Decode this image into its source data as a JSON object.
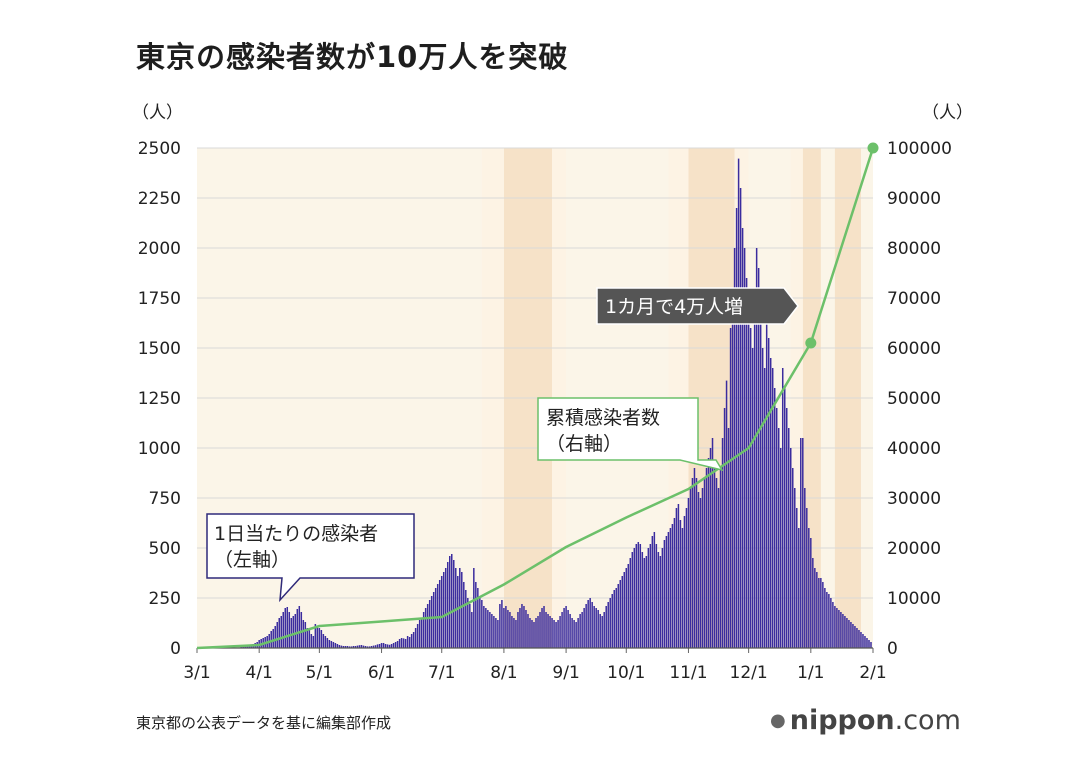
{
  "title": "東京の感染者数が10万人を突破",
  "source_note": "東京都の公表データを基に編集部作成",
  "brand": {
    "dot_icon": "circle-dot-icon",
    "name_bold": "nippon",
    "name_rest": ".com"
  },
  "colors": {
    "bars": "#3b2c9e",
    "cumulative_line": "#6cc06a",
    "shade_light": "#fbf5e8",
    "shade_dark": "#f6e2c8",
    "grid": "#d9d9d9"
  },
  "callouts": {
    "daily": [
      "1日当たりの感染者",
      "（左軸）"
    ],
    "cumulative": [
      "累積感染者数",
      "（右軸）"
    ],
    "month": "1カ月で4万人増"
  },
  "chart_data": {
    "type": "bar",
    "title": "東京の感染者数が10万人を突破",
    "left_axis": {
      "unit": "（人）",
      "range": [
        0,
        2500
      ],
      "ticks": [
        "0",
        "250",
        "500",
        "750",
        "1000",
        "1250",
        "1500",
        "1750",
        "2000",
        "2250",
        "2500"
      ]
    },
    "right_axis": {
      "unit": "（人）",
      "range": [
        0,
        100000
      ],
      "ticks": [
        "0",
        "10000",
        "20000",
        "30000",
        "40000",
        "50000",
        "60000",
        "70000",
        "80000",
        "90000",
        "100000"
      ]
    },
    "x_ticks": [
      "3/1",
      "4/1",
      "5/1",
      "6/1",
      "7/1",
      "8/1",
      "9/1",
      "10/1",
      "11/1",
      "12/1",
      "1/1",
      "2/1"
    ],
    "grid": true,
    "series": [
      {
        "name": "1日当たりの感染者",
        "type": "bar",
        "axis": "left",
        "x": "day index from 3/1 (0 = 3/1, 337 = 2/1)",
        "values": [
          0,
          0,
          0,
          0,
          0,
          0,
          0,
          0,
          0,
          0,
          0,
          0,
          0,
          0,
          0,
          0,
          0,
          0,
          0,
          0,
          2,
          3,
          5,
          5,
          8,
          10,
          15,
          18,
          20,
          25,
          30,
          40,
          45,
          50,
          55,
          60,
          70,
          85,
          95,
          110,
          130,
          150,
          160,
          180,
          200,
          205,
          180,
          150,
          160,
          170,
          195,
          210,
          180,
          140,
          130,
          100,
          90,
          70,
          60,
          120,
          110,
          100,
          90,
          70,
          60,
          50,
          40,
          35,
          30,
          25,
          20,
          15,
          12,
          10,
          10,
          10,
          8,
          8,
          10,
          10,
          12,
          14,
          15,
          12,
          10,
          8,
          8,
          10,
          12,
          14,
          18,
          20,
          25,
          25,
          20,
          18,
          16,
          20,
          25,
          30,
          35,
          45,
          50,
          48,
          45,
          60,
          55,
          70,
          80,
          100,
          120,
          140,
          150,
          180,
          200,
          220,
          240,
          260,
          280,
          300,
          320,
          340,
          360,
          380,
          400,
          430,
          460,
          470,
          440,
          400,
          360,
          400,
          380,
          330,
          290,
          250,
          220,
          180,
          400,
          330,
          300,
          260,
          240,
          210,
          200,
          190,
          180,
          170,
          160,
          150,
          140,
          220,
          240,
          200,
          210,
          190,
          180,
          160,
          150,
          140,
          180,
          200,
          220,
          210,
          190,
          170,
          150,
          140,
          130,
          150,
          160,
          180,
          200,
          210,
          180,
          170,
          160,
          150,
          140,
          130,
          140,
          160,
          180,
          200,
          210,
          190,
          170,
          150,
          140,
          130,
          150,
          170,
          180,
          200,
          220,
          240,
          250,
          230,
          210,
          200,
          190,
          170,
          160,
          180,
          210,
          230,
          250,
          270,
          290,
          300,
          320,
          340,
          360,
          380,
          400,
          420,
          450,
          480,
          500,
          520,
          530,
          520,
          480,
          450,
          460,
          500,
          520,
          560,
          580,
          520,
          480,
          460,
          500,
          540,
          560,
          580,
          600,
          620,
          650,
          700,
          720,
          640,
          600,
          660,
          700,
          750,
          800,
          850,
          900,
          850,
          780,
          750,
          800,
          850,
          900,
          950,
          1000,
          1050,
          900,
          850,
          800,
          900,
          1050,
          1200,
          1337,
          1100,
          1600,
          1800,
          2000,
          2200,
          2447,
          2300,
          2100,
          2000,
          1850,
          1700,
          1600,
          1500,
          1800,
          2000,
          1900,
          1700,
          1500,
          1400,
          1650,
          1550,
          1450,
          1400,
          1300,
          1200,
          1100,
          1000,
          1400,
          1300,
          1200,
          1100,
          1000,
          900,
          800,
          700,
          600,
          1050,
          1050,
          800,
          700,
          600,
          550,
          450,
          400,
          380,
          350,
          350,
          330,
          300,
          280,
          270,
          250,
          230,
          210,
          200,
          190,
          180,
          170,
          160,
          150,
          140,
          130,
          120,
          110,
          100,
          90,
          80,
          70,
          60,
          50,
          40,
          30
        ],
        "color": "#3b2c9e"
      },
      {
        "name": "累積感染者数",
        "type": "line",
        "axis": "right",
        "x": [
          "3/1",
          "4/1",
          "5/1",
          "6/1",
          "7/1",
          "8/1",
          "9/1",
          "10/1",
          "11/1",
          "12/1",
          "1/1",
          "2/1"
        ],
        "values": [
          0,
          600,
          4400,
          5300,
          6200,
          12700,
          20200,
          26100,
          31800,
          40000,
          61000,
          100000
        ],
        "color": "#6cc06a"
      }
    ],
    "highlighted_points": [
      {
        "x": "1/1",
        "y": 61000
      },
      {
        "x": "2/1",
        "y": 100000
      }
    ]
  }
}
